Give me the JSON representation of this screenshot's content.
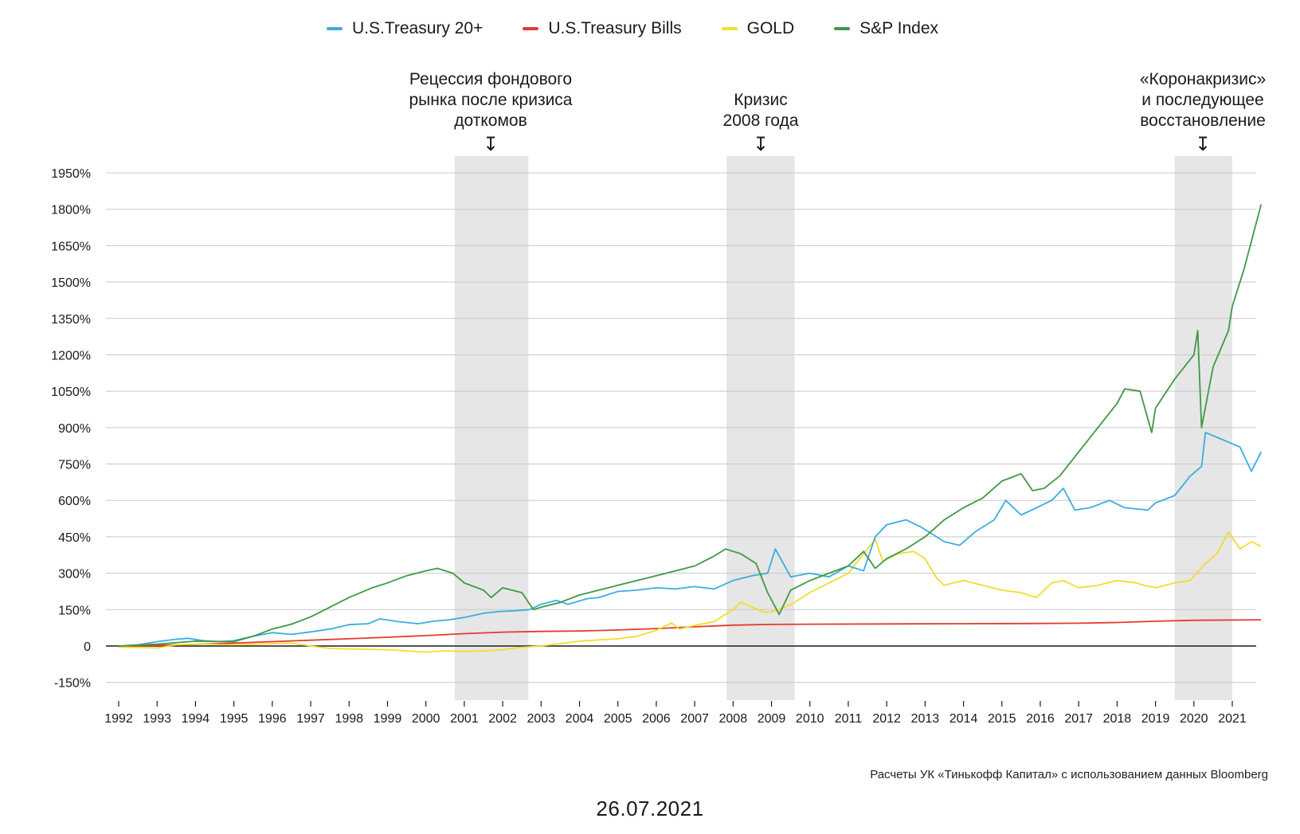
{
  "chart_data": {
    "type": "line",
    "ylim": [
      -150,
      1950
    ],
    "yticks": [
      -150,
      0,
      150,
      300,
      450,
      600,
      750,
      900,
      1050,
      1200,
      1350,
      1500,
      1650,
      1800,
      1950
    ],
    "ytick_labels": [
      "-150%",
      "0",
      "150%",
      "300%",
      "450%",
      "600%",
      "750%",
      "900%",
      "1050%",
      "1200%",
      "1350%",
      "1500%",
      "1650%",
      "1800%",
      "1950%"
    ],
    "xlim": [
      1992,
      2021.8
    ],
    "xticks": [
      1992,
      1993,
      1994,
      1995,
      1996,
      1997,
      1998,
      1999,
      2000,
      2001,
      2002,
      2003,
      2004,
      2005,
      2006,
      2007,
      2008,
      2009,
      2010,
      2011,
      2012,
      2013,
      2014,
      2015,
      2016,
      2017,
      2018,
      2019,
      2020,
      2021
    ],
    "xtick_labels": [
      "1992",
      "1993",
      "1994",
      "1995",
      "1996",
      "1997",
      "1998",
      "1999",
      "2000",
      "2001",
      "2002",
      "2003",
      "2004",
      "2005",
      "2006",
      "2007",
      "2008",
      "2009",
      "2010",
      "2011",
      "2012",
      "2013",
      "2014",
      "2015",
      "2016",
      "2017",
      "2018",
      "2019",
      "2020",
      "2021"
    ],
    "grid": true,
    "legend_position": "top",
    "shaded_periods": [
      {
        "start": 2000.75,
        "end": 2002.67
      },
      {
        "start": 2007.83,
        "end": 2009.6
      },
      {
        "start": 2019.5,
        "end": 2021.0
      }
    ],
    "series": [
      {
        "name": "U.S.Treasury 20+",
        "color": "#3aaee0",
        "x": [
          1992.0,
          1992.5,
          1993.0,
          1993.5,
          1993.8,
          1994.2,
          1994.6,
          1995.0,
          1995.5,
          1996.0,
          1996.5,
          1997.0,
          1997.5,
          1998.0,
          1998.5,
          1998.8,
          1999.3,
          1999.8,
          2000.2,
          2000.6,
          2001.0,
          2001.5,
          2001.9,
          2002.3,
          2002.7,
          2003.0,
          2003.4,
          2003.7,
          2004.2,
          2004.5,
          2005.0,
          2005.5,
          2006.0,
          2006.5,
          2007.0,
          2007.5,
          2008.0,
          2008.5,
          2008.9,
          2009.1,
          2009.5,
          2010.0,
          2010.5,
          2011.0,
          2011.4,
          2011.7,
          2012.0,
          2012.5,
          2012.9,
          2013.5,
          2013.9,
          2014.3,
          2014.8,
          2015.1,
          2015.5,
          2015.9,
          2016.3,
          2016.6,
          2016.9,
          2017.3,
          2017.8,
          2018.2,
          2018.8,
          2019.0,
          2019.5,
          2019.9,
          2020.2,
          2020.3,
          2020.6,
          2020.9,
          2021.2,
          2021.5,
          2021.75
        ],
        "values": [
          0,
          5,
          18,
          28,
          32,
          22,
          18,
          22,
          40,
          55,
          48,
          58,
          70,
          88,
          92,
          112,
          100,
          92,
          102,
          108,
          118,
          135,
          142,
          145,
          150,
          172,
          188,
          172,
          195,
          200,
          225,
          230,
          240,
          235,
          245,
          235,
          270,
          290,
          300,
          400,
          285,
          300,
          285,
          330,
          310,
          450,
          500,
          520,
          490,
          430,
          415,
          470,
          520,
          600,
          540,
          570,
          600,
          650,
          560,
          570,
          600,
          570,
          560,
          590,
          620,
          700,
          740,
          880,
          860,
          840,
          820,
          720,
          800
        ]
      },
      {
        "name": "U.S.Treasury Bills",
        "color": "#e53a2b",
        "x": [
          1992.0,
          1993.0,
          1994.0,
          1995.0,
          1996.0,
          1997.0,
          1998.0,
          1999.0,
          2000.0,
          2001.0,
          2002.0,
          2003.0,
          2004.0,
          2005.0,
          2006.0,
          2007.0,
          2008.0,
          2009.0,
          2010.0,
          2012.0,
          2014.0,
          2016.0,
          2017.0,
          2018.0,
          2019.0,
          2020.0,
          2021.0,
          2021.75
        ],
        "values": [
          0,
          3,
          7,
          12,
          18,
          24,
          30,
          36,
          43,
          51,
          57,
          60,
          62,
          66,
          72,
          79,
          86,
          89,
          90,
          91,
          92,
          93,
          94,
          97,
          102,
          106,
          107,
          108
        ]
      },
      {
        "name": "GOLD",
        "color": "#f5dc2c",
        "x": [
          1992.0,
          1993.0,
          1993.5,
          1994.0,
          1995.0,
          1996.0,
          1996.5,
          1997.0,
          1997.5,
          1998.0,
          1999.0,
          1999.5,
          2000.0,
          2000.5,
          2001.0,
          2001.5,
          2002.0,
          2002.5,
          2003.0,
          2003.5,
          2004.0,
          2004.5,
          2005.0,
          2005.5,
          2006.0,
          2006.4,
          2006.6,
          2007.0,
          2007.5,
          2008.0,
          2008.2,
          2008.8,
          2009.0,
          2009.5,
          2010.0,
          2010.5,
          2011.0,
          2011.5,
          2011.7,
          2011.9,
          2012.3,
          2012.7,
          2013.0,
          2013.3,
          2013.5,
          2014.0,
          2014.5,
          2015.0,
          2015.5,
          2015.9,
          2016.3,
          2016.6,
          2017.0,
          2017.5,
          2018.0,
          2018.5,
          2018.7,
          2019.0,
          2019.5,
          2019.9,
          2020.3,
          2020.6,
          2020.9,
          2021.2,
          2021.5,
          2021.75
        ],
        "values": [
          -5,
          -8,
          5,
          8,
          5,
          10,
          12,
          0,
          -10,
          -12,
          -15,
          -20,
          -25,
          -20,
          -22,
          -20,
          -15,
          -5,
          0,
          10,
          20,
          25,
          30,
          40,
          65,
          95,
          70,
          85,
          100,
          150,
          180,
          140,
          140,
          170,
          220,
          260,
          300,
          400,
          440,
          350,
          380,
          390,
          360,
          280,
          250,
          270,
          250,
          230,
          220,
          200,
          260,
          270,
          240,
          250,
          270,
          260,
          250,
          240,
          260,
          270,
          340,
          380,
          470,
          400,
          430,
          410
        ]
      },
      {
        "name": "S&P Index",
        "color": "#3e9a43",
        "x": [
          1992.0,
          1993.0,
          1994.0,
          1995.0,
          1995.5,
          1996.0,
          1996.5,
          1997.0,
          1997.5,
          1998.0,
          1998.6,
          1999.0,
          1999.5,
          2000.0,
          2000.3,
          2000.7,
          2001.0,
          2001.5,
          2001.7,
          2002.0,
          2002.5,
          2002.8,
          2003.0,
          2003.5,
          2004.0,
          2004.5,
          2005.0,
          2005.5,
          2006.0,
          2006.5,
          2007.0,
          2007.5,
          2007.8,
          2008.2,
          2008.6,
          2008.9,
          2009.2,
          2009.5,
          2010.0,
          2010.5,
          2011.0,
          2011.4,
          2011.7,
          2012.0,
          2012.5,
          2013.0,
          2013.5,
          2014.0,
          2014.5,
          2015.0,
          2015.5,
          2015.8,
          2016.1,
          2016.5,
          2017.0,
          2017.5,
          2018.0,
          2018.2,
          2018.6,
          2018.9,
          2019.0,
          2019.5,
          2020.0,
          2020.1,
          2020.2,
          2020.5,
          2020.9,
          2021.0,
          2021.3,
          2021.75
        ],
        "values": [
          0,
          8,
          20,
          18,
          40,
          70,
          90,
          120,
          160,
          200,
          240,
          260,
          290,
          310,
          320,
          300,
          260,
          230,
          200,
          240,
          220,
          150,
          160,
          180,
          210,
          230,
          250,
          270,
          290,
          310,
          330,
          370,
          400,
          380,
          340,
          220,
          130,
          230,
          270,
          300,
          330,
          390,
          320,
          360,
          400,
          450,
          520,
          570,
          610,
          680,
          710,
          640,
          650,
          700,
          800,
          900,
          1000,
          1060,
          1050,
          880,
          980,
          1100,
          1200,
          1300,
          900,
          1150,
          1300,
          1400,
          1550,
          1820
        ]
      }
    ]
  },
  "annotations": [
    {
      "lines": [
        "Рецессия фондового",
        "рынка после кризиса",
        "доткомов"
      ]
    },
    {
      "lines": [
        "Кризис",
        "2008 года"
      ]
    },
    {
      "lines": [
        "«Коронакризис»",
        "и последующее",
        "восстановление"
      ]
    }
  ],
  "arrow_glyph": "↧",
  "source_note": "Расчеты УК «Тинькофф Капитал» с использованием данных Bloomberg",
  "date": "26.07.2021"
}
